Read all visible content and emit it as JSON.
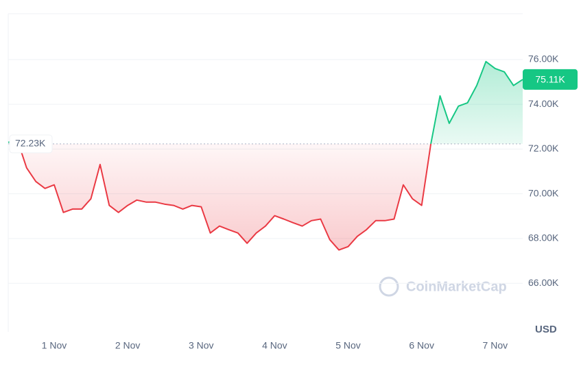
{
  "chart_data": {
    "type": "baseline-line",
    "categories": [
      null,
      null,
      null,
      null,
      null,
      "1 Nov",
      null,
      null,
      null,
      null,
      null,
      null,
      null,
      "2 Nov",
      null,
      null,
      null,
      null,
      null,
      null,
      null,
      "3 Nov",
      null,
      null,
      null,
      null,
      null,
      null,
      null,
      "4 Nov",
      null,
      null,
      null,
      null,
      null,
      null,
      null,
      "5 Nov",
      null,
      null,
      null,
      null,
      null,
      null,
      null,
      "6 Nov",
      null,
      null,
      null,
      null,
      null,
      null,
      null,
      "7 Nov",
      null,
      null,
      null
    ],
    "values": [
      72300,
      72400,
      71160,
      70550,
      70240,
      70400,
      69170,
      69320,
      69320,
      69780,
      71310,
      69480,
      69170,
      69480,
      69720,
      69630,
      69630,
      69540,
      69480,
      69320,
      69480,
      69420,
      68250,
      68560,
      68400,
      68250,
      67790,
      68250,
      68560,
      69020,
      68870,
      68710,
      68560,
      68800,
      68870,
      67950,
      67490,
      67640,
      68100,
      68400,
      68800,
      68800,
      68870,
      70400,
      69780,
      69480,
      72230,
      74380,
      73150,
      73920,
      74070,
      74840,
      75910,
      75600,
      75450,
      74840,
      75110
    ],
    "up_color": "#16c784",
    "down_color": "#ea3943",
    "reference": {
      "value": 72230,
      "label": "72.23K"
    },
    "last_price": {
      "value": 75110,
      "label": "75.11K"
    },
    "ylim": [
      63830,
      78050
    ],
    "yticks": [
      {
        "value": 66000,
        "label": "66.00K"
      },
      {
        "value": 68000,
        "label": "68.00K"
      },
      {
        "value": 70000,
        "label": "70.00K"
      },
      {
        "value": 72000,
        "label": "72.00K"
      },
      {
        "value": 74000,
        "label": "74.00K"
      },
      {
        "value": 76000,
        "label": "76.00K"
      }
    ],
    "grid": true,
    "currency": "USD",
    "watermark": "CoinMarketCap"
  }
}
